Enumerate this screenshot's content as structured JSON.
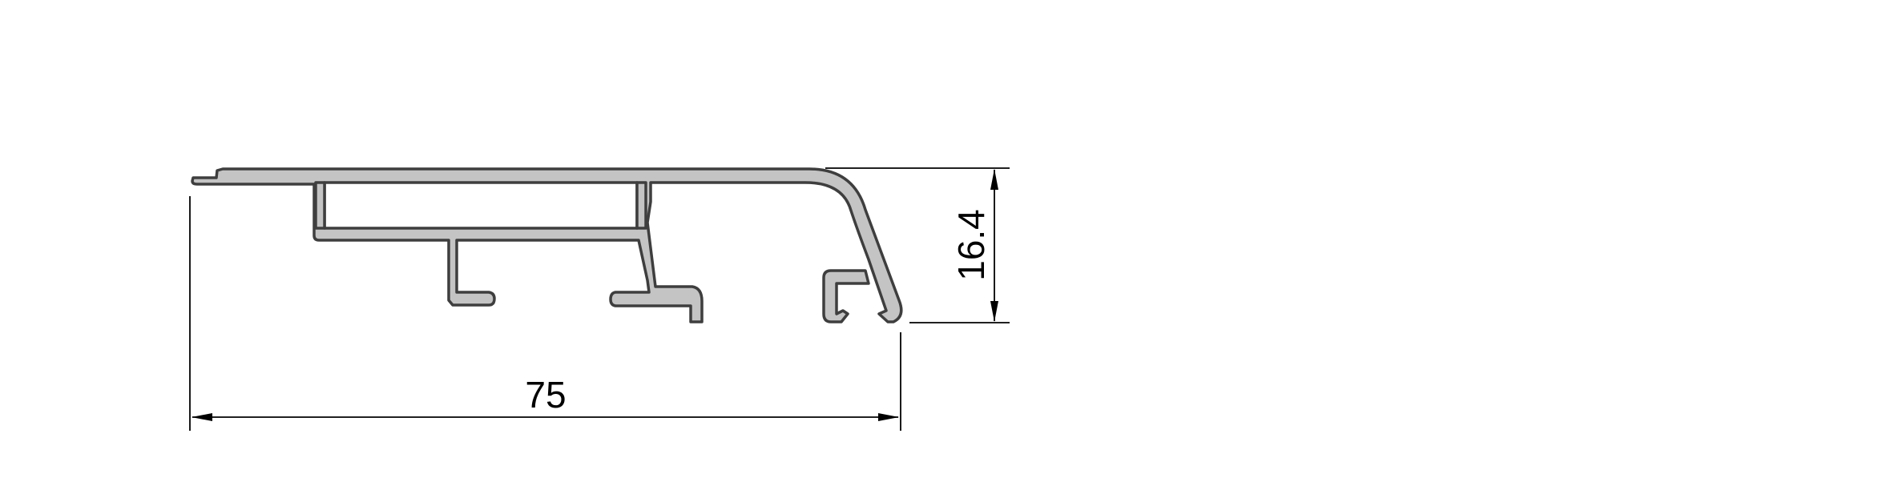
{
  "dimensions": {
    "width": {
      "value": "75"
    },
    "height": {
      "value": "16.4"
    }
  },
  "colors": {
    "profile_fill": "#c4c4c4",
    "profile_outline": "#3e3e3e",
    "dimension_line": "#000000",
    "background": "#ffffff"
  }
}
